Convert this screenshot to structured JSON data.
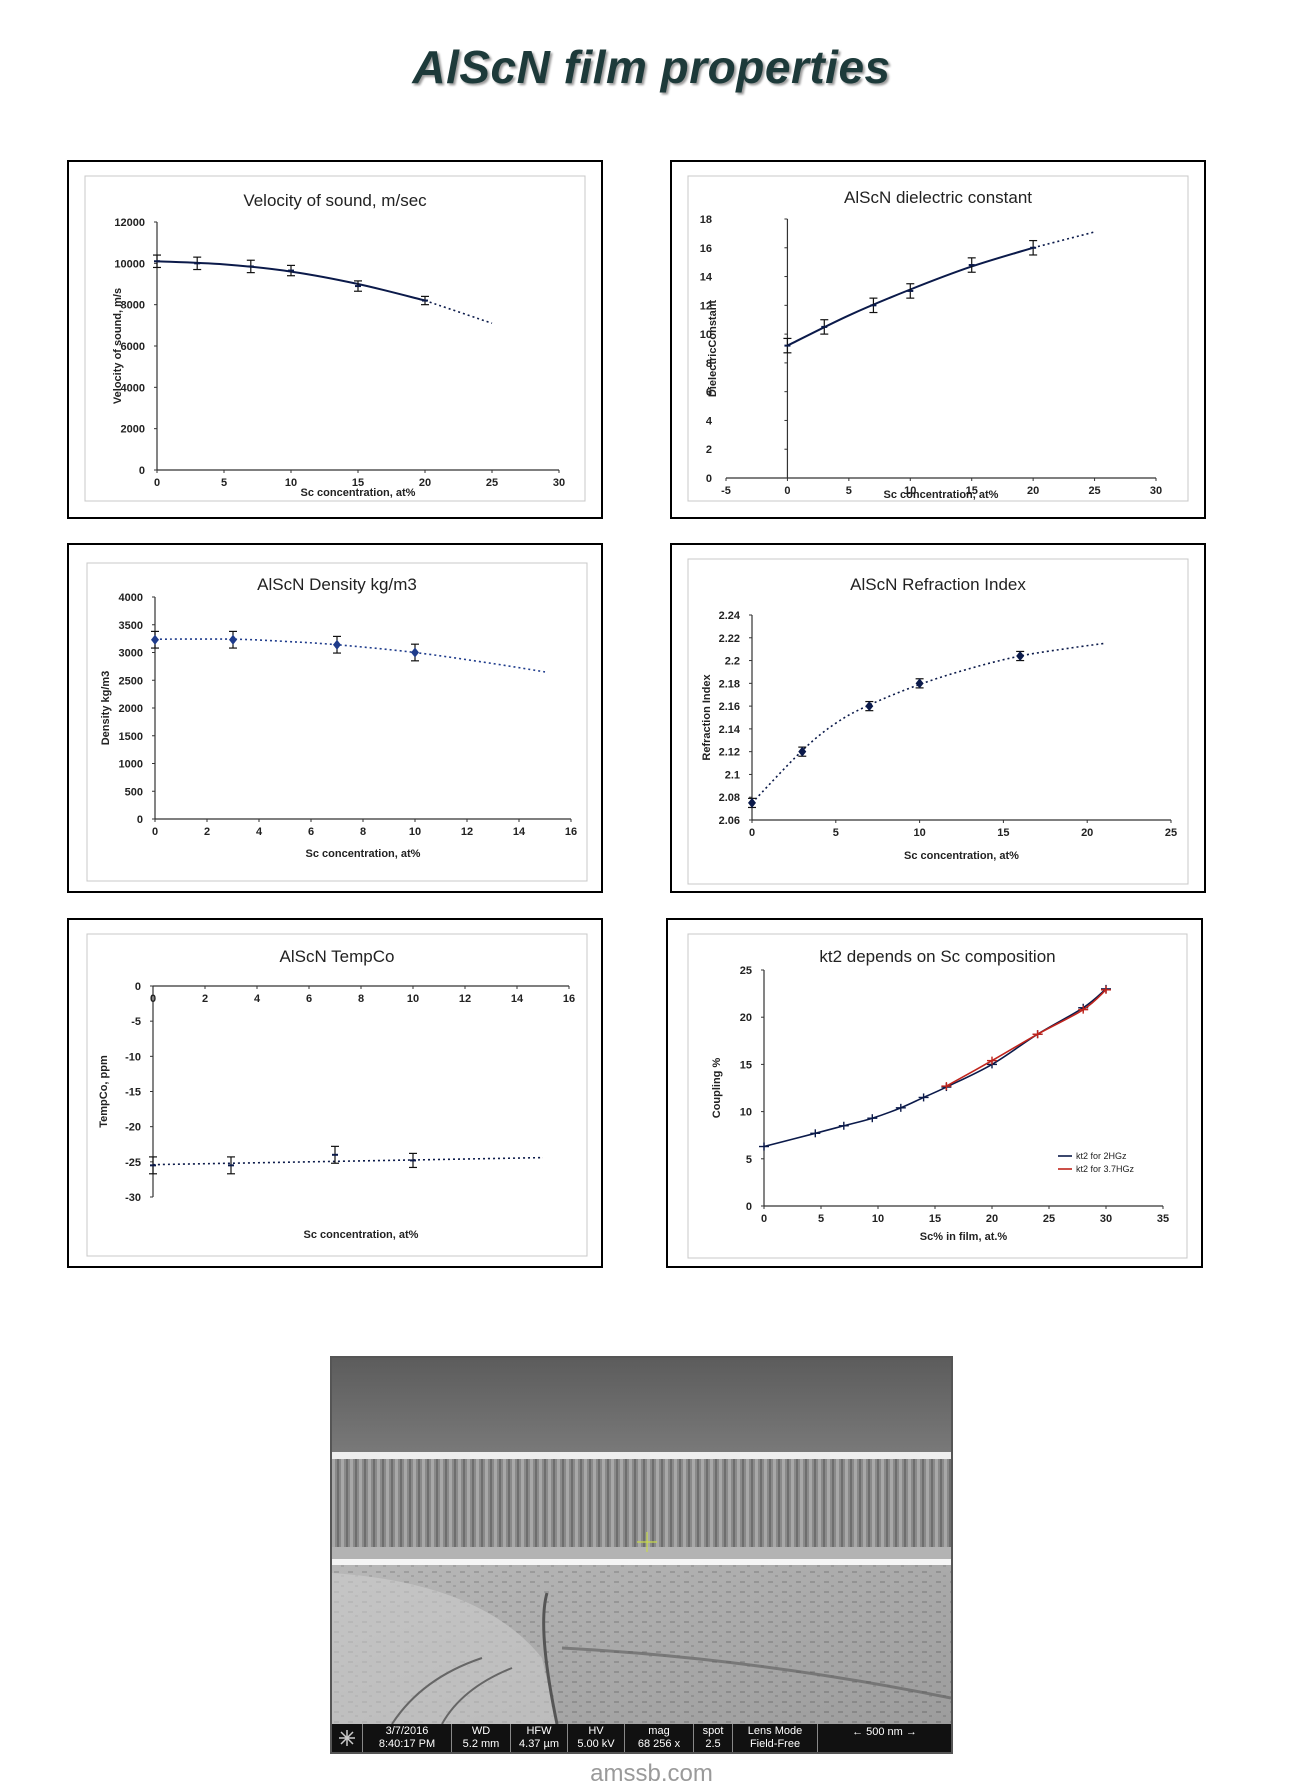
{
  "page": {
    "title": "AlScN film properties",
    "watermark": "amssb.com"
  },
  "colors": {
    "series_dark": "#0b1a4a",
    "series_blue": "#1f3c8c",
    "series_red": "#c0241c",
    "title": "#1d3a3a"
  },
  "chart_data": [
    {
      "id": "velocity",
      "type": "scatter",
      "title": "Velocity of sound, m/sec",
      "xlabel": "Sc concentration, at%",
      "ylabel": "Velocity of sound, m/s",
      "xlim": [
        0,
        30
      ],
      "ylim": [
        0,
        12000
      ],
      "xticks": [
        0,
        5,
        10,
        15,
        20,
        25,
        30
      ],
      "yticks": [
        0,
        2000,
        4000,
        6000,
        8000,
        10000,
        12000
      ],
      "series": [
        {
          "name": "Velocity",
          "x": [
            0,
            3,
            7,
            10,
            15,
            20
          ],
          "y": [
            10100,
            10000,
            9850,
            9650,
            8900,
            8200
          ],
          "yerr": [
            300,
            300,
            300,
            250,
            250,
            200
          ]
        }
      ],
      "trendline": {
        "x": [
          0,
          5,
          10,
          15,
          20,
          25
        ],
        "y": [
          10100,
          9950,
          9600,
          9000,
          8200,
          7100
        ]
      }
    },
    {
      "id": "dielectric",
      "type": "scatter",
      "title": "AlScN dielectric constant",
      "xlabel": "Sc concentration, at%",
      "ylabel": "DielectricConstant",
      "xlim": [
        -5,
        30
      ],
      "ylim": [
        0,
        18
      ],
      "xticks": [
        -5,
        0,
        5,
        10,
        15,
        20,
        25,
        30
      ],
      "yticks": [
        0,
        2,
        4,
        6,
        8,
        10,
        12,
        14,
        16,
        18
      ],
      "series": [
        {
          "name": "Dielectric constant",
          "x": [
            0,
            3,
            7,
            10,
            15,
            20
          ],
          "y": [
            9.2,
            10.5,
            12,
            13,
            14.8,
            16
          ],
          "yerr": [
            0.5,
            0.5,
            0.5,
            0.5,
            0.5,
            0.5
          ]
        }
      ],
      "trendline": {
        "x": [
          0,
          5,
          10,
          15,
          20,
          25
        ],
        "y": [
          9.2,
          11.3,
          13.1,
          14.7,
          16.0,
          17.1
        ]
      }
    },
    {
      "id": "density",
      "type": "scatter",
      "title": "AlScN Density kg/m3",
      "xlabel": "Sc concentration, at%",
      "ylabel": "Density kg/m3",
      "xlim": [
        0,
        16
      ],
      "ylim": [
        0,
        4000
      ],
      "xticks": [
        0,
        2,
        4,
        6,
        8,
        10,
        12,
        14,
        16
      ],
      "yticks": [
        0,
        500,
        1000,
        1500,
        2000,
        2500,
        3000,
        3500,
        4000
      ],
      "series": [
        {
          "name": "Density",
          "x": [
            0,
            3,
            7,
            10
          ],
          "y": [
            3230,
            3230,
            3140,
            3000
          ],
          "yerr": [
            150,
            150,
            150,
            150
          ]
        }
      ],
      "trendline": {
        "x": [
          0,
          3,
          5,
          7,
          10,
          13,
          15
        ],
        "y": [
          3240,
          3240,
          3200,
          3140,
          3000,
          2800,
          2650
        ]
      }
    },
    {
      "id": "refraction",
      "type": "scatter",
      "title": "AlScN Refraction Index",
      "xlabel": "Sc concentration, at%",
      "ylabel": "Refraction Index",
      "xlim": [
        0,
        25
      ],
      "ylim": [
        2.06,
        2.24
      ],
      "xticks": [
        0,
        5,
        10,
        15,
        20,
        25
      ],
      "yticks": [
        "2.06",
        "2.08",
        "2.1",
        "2.12",
        "2.14",
        "2.16",
        "2.18",
        "2.2",
        "2.22",
        "2.24"
      ],
      "series": [
        {
          "name": "Refraction index",
          "x": [
            0,
            3,
            7,
            10,
            16
          ],
          "y": [
            2.075,
            2.12,
            2.16,
            2.18,
            2.204
          ],
          "yerr": [
            0.004,
            0.004,
            0.004,
            0.004,
            0.004
          ]
        }
      ],
      "trendline": {
        "x": [
          0,
          3,
          5,
          7,
          10,
          13,
          16,
          19,
          21
        ],
        "y": [
          2.075,
          2.121,
          2.145,
          2.161,
          2.179,
          2.193,
          2.204,
          2.211,
          2.215
        ]
      }
    },
    {
      "id": "tempco",
      "type": "scatter",
      "title": "AlScN TempCo",
      "xlabel": "Sc concentration, at%",
      "ylabel": "TempCo, ppm",
      "xlim": [
        0,
        16
      ],
      "ylim": [
        -30,
        0
      ],
      "xticks": [
        0,
        2,
        4,
        6,
        8,
        10,
        12,
        14,
        16
      ],
      "yticks": [
        0,
        -5,
        -10,
        -15,
        -20,
        -25,
        -30
      ],
      "series": [
        {
          "name": "TempCo",
          "x": [
            0,
            3,
            7,
            10
          ],
          "y": [
            -25.5,
            -25.5,
            -24,
            -24.8
          ],
          "yerr": [
            1.2,
            1.2,
            1.2,
            1.0
          ]
        }
      ],
      "trendline": {
        "x": [
          0,
          15
        ],
        "y": [
          -25.4,
          -24.4
        ]
      }
    },
    {
      "id": "kt2",
      "type": "line",
      "title": "kt2 depends on Sc composition",
      "xlabel": "Sc% in film, at.%",
      "ylabel": "Coupling %",
      "xlim": [
        0,
        35
      ],
      "ylim": [
        0,
        25
      ],
      "xticks": [
        0,
        5,
        10,
        15,
        20,
        25,
        30,
        35
      ],
      "yticks": [
        0,
        5,
        10,
        15,
        20,
        25
      ],
      "legend_position": "bottom-right",
      "series": [
        {
          "name": "kt2 for 2HGz",
          "color": "#0b1a4a",
          "x": [
            0,
            4.5,
            7,
            9.5,
            12,
            14,
            16,
            20,
            24,
            28,
            30
          ],
          "y": [
            6.3,
            7.7,
            8.5,
            9.3,
            10.4,
            11.5,
            12.6,
            15.0,
            18.2,
            21.0,
            23.0
          ]
        },
        {
          "name": "kt2 for 3.7HGz",
          "color": "#c0241c",
          "x": [
            16,
            20,
            24,
            28,
            30
          ],
          "y": [
            12.7,
            15.4,
            18.2,
            20.8,
            22.9
          ]
        }
      ]
    }
  ],
  "sem": {
    "date": "3/7/2016",
    "time": "8:40:17 PM",
    "wd_label": "WD",
    "wd": "5.2 mm",
    "hfw_label": "HFW",
    "hfw": "4.37 µm",
    "hv_label": "HV",
    "hv": "5.00 kV",
    "mag_label": "mag",
    "mag": "68 256 x",
    "spot_label": "spot",
    "spot": "2.5",
    "lens_label": "Lens Mode",
    "lens": "Field-Free",
    "scale": "500 nm"
  }
}
